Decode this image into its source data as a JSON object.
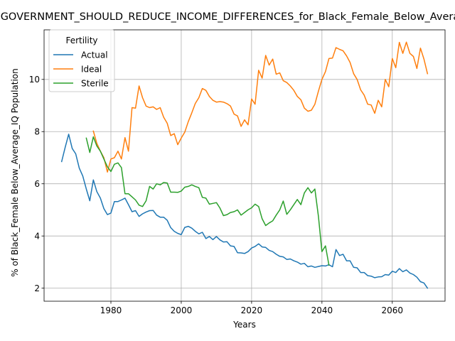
{
  "chart_data": {
    "type": "line",
    "title": "GOVERNMENT_SHOULD_REDUCE_INCOME_DIFFERENCES_for_Black_Female_Below_Average_IQ",
    "xlabel": "Years",
    "ylabel": "% of Black_Female Below_Average_IQ Population",
    "xlim": [
      1961,
      2075
    ],
    "ylim": [
      1.5,
      11.9
    ],
    "xticks": [
      1980,
      2000,
      2020,
      2040,
      2060
    ],
    "yticks": [
      2,
      4,
      6,
      8,
      10
    ],
    "grid": true,
    "legend": {
      "title": "Fertility",
      "placement": "top-left"
    },
    "series": [
      {
        "name": "Actual",
        "color": "#1f77b4",
        "x": [
          1966,
          1967,
          1968,
          1969,
          1970,
          1971,
          1972,
          1973,
          1974,
          1975,
          1976,
          1977,
          1978,
          1979,
          1980,
          1981,
          1982,
          1983,
          1984,
          1985,
          1986,
          1987,
          1988,
          1989,
          1990,
          1991,
          1992,
          1993,
          1994,
          1995,
          1996,
          1997,
          1998,
          1999,
          2000,
          2001,
          2002,
          2003,
          2004,
          2005,
          2006,
          2007,
          2008,
          2009,
          2010,
          2011,
          2012,
          2013,
          2014,
          2015,
          2016,
          2017,
          2018,
          2019,
          2020,
          2021,
          2022,
          2023,
          2024,
          2025,
          2026,
          2027,
          2028,
          2029,
          2030,
          2031,
          2032,
          2033,
          2034,
          2035,
          2036,
          2037,
          2038,
          2039,
          2040,
          2041,
          2042,
          2043,
          2044,
          2045,
          2046,
          2047,
          2048,
          2049,
          2050,
          2051,
          2052,
          2053,
          2054,
          2055,
          2056,
          2057,
          2058,
          2059,
          2060,
          2061,
          2062,
          2063,
          2064,
          2065,
          2066,
          2067,
          2068,
          2069,
          2070
        ],
        "y": [
          6.85,
          7.4,
          7.9,
          7.35,
          7.15,
          6.6,
          6.3,
          5.8,
          5.35,
          6.15,
          5.7,
          5.45,
          5.05,
          4.82,
          4.88,
          5.32,
          5.32,
          5.38,
          5.45,
          5.2,
          4.93,
          4.97,
          4.75,
          4.85,
          4.92,
          4.97,
          4.98,
          4.8,
          4.72,
          4.72,
          4.6,
          4.32,
          4.18,
          4.1,
          4.05,
          4.33,
          4.37,
          4.3,
          4.18,
          4.08,
          4.14,
          3.9,
          3.98,
          3.86,
          3.98,
          3.85,
          3.77,
          3.78,
          3.62,
          3.6,
          3.36,
          3.35,
          3.33,
          3.4,
          3.54,
          3.6,
          3.7,
          3.58,
          3.56,
          3.45,
          3.4,
          3.3,
          3.22,
          3.2,
          3.1,
          3.12,
          3.05,
          3.0,
          2.92,
          2.95,
          2.82,
          2.85,
          2.8,
          2.83,
          2.86,
          2.85,
          2.9,
          2.82,
          3.48,
          3.25,
          3.3,
          3.05,
          3.05,
          2.8,
          2.78,
          2.6,
          2.6,
          2.48,
          2.46,
          2.4,
          2.43,
          2.44,
          2.52,
          2.5,
          2.65,
          2.6,
          2.75,
          2.63,
          2.7,
          2.58,
          2.52,
          2.42,
          2.25,
          2.2,
          2.0
        ]
      },
      {
        "name": "Ideal",
        "color": "#ff7f0e",
        "x": [
          1975,
          1976,
          1977,
          1978,
          1979,
          1980,
          1981,
          1982,
          1983,
          1984,
          1985,
          1986,
          1987,
          1988,
          1989,
          1990,
          1991,
          1992,
          1993,
          1994,
          1995,
          1996,
          1997,
          1998,
          1999,
          2000,
          2001,
          2002,
          2003,
          2004,
          2005,
          2006,
          2007,
          2008,
          2009,
          2010,
          2011,
          2012,
          2013,
          2014,
          2015,
          2016,
          2017,
          2018,
          2019,
          2020,
          2021,
          2022,
          2023,
          2024,
          2025,
          2026,
          2027,
          2028,
          2029,
          2030,
          2031,
          2032,
          2033,
          2034,
          2035,
          2036,
          2037,
          2038,
          2039,
          2040,
          2041,
          2042,
          2043,
          2044,
          2045,
          2046,
          2047,
          2048,
          2049,
          2050,
          2051,
          2052,
          2053,
          2054,
          2055,
          2056,
          2057,
          2058,
          2059,
          2060,
          2061,
          2062,
          2063,
          2064,
          2065,
          2066,
          2067,
          2068,
          2069,
          2070
        ],
        "y": [
          8.02,
          7.55,
          7.25,
          7.0,
          6.45,
          6.95,
          7.0,
          7.25,
          6.95,
          7.77,
          7.25,
          8.92,
          8.9,
          9.75,
          9.3,
          8.98,
          8.92,
          8.95,
          8.85,
          8.92,
          8.55,
          8.32,
          7.85,
          7.92,
          7.5,
          7.75,
          7.98,
          8.38,
          8.72,
          9.08,
          9.3,
          9.65,
          9.58,
          9.35,
          9.2,
          9.13,
          9.15,
          9.13,
          9.07,
          8.98,
          8.67,
          8.6,
          8.2,
          8.45,
          8.26,
          9.25,
          9.05,
          10.35,
          10.05,
          10.92,
          10.55,
          10.78,
          10.2,
          10.25,
          9.95,
          9.88,
          9.75,
          9.58,
          9.35,
          9.22,
          8.9,
          8.78,
          8.82,
          9.05,
          9.55,
          10.0,
          10.3,
          10.8,
          10.82,
          11.22,
          11.15,
          11.1,
          10.9,
          10.65,
          10.22,
          10.0,
          9.6,
          9.4,
          9.05,
          9.02,
          8.7,
          9.2,
          8.95,
          10.0,
          9.72,
          10.8,
          10.45,
          11.42,
          11.0,
          11.43,
          11.0,
          10.88,
          10.42,
          11.2,
          10.78,
          10.22
        ]
      },
      {
        "name": "Sterile",
        "color": "#2ca02c",
        "x": [
          1973,
          1974,
          1975,
          1976,
          1977,
          1978,
          1979,
          1980,
          1981,
          1982,
          1983,
          1984,
          1985,
          1986,
          1987,
          1988,
          1989,
          1990,
          1991,
          1992,
          1993,
          1994,
          1995,
          1996,
          1997,
          1998,
          1999,
          2000,
          2001,
          2002,
          2003,
          2004,
          2005,
          2006,
          2007,
          2008,
          2009,
          2010,
          2011,
          2012,
          2013,
          2014,
          2015,
          2016,
          2017,
          2018,
          2019,
          2020,
          2021,
          2022,
          2023,
          2024,
          2025,
          2026,
          2027,
          2028,
          2029,
          2030,
          2031,
          2032,
          2033,
          2034,
          2035,
          2036,
          2037,
          2038,
          2039,
          2040,
          2041,
          2042
        ],
        "y": [
          7.75,
          7.2,
          7.8,
          7.45,
          7.25,
          6.95,
          6.65,
          6.47,
          6.75,
          6.8,
          6.62,
          5.62,
          5.62,
          5.5,
          5.38,
          5.18,
          5.13,
          5.35,
          5.9,
          5.8,
          6.0,
          5.96,
          6.05,
          6.03,
          5.68,
          5.68,
          5.67,
          5.72,
          5.87,
          5.9,
          5.96,
          5.9,
          5.85,
          5.48,
          5.45,
          5.22,
          5.25,
          5.28,
          5.07,
          4.78,
          4.82,
          4.9,
          4.93,
          5.0,
          4.8,
          4.9,
          5.0,
          5.08,
          5.22,
          5.13,
          4.66,
          4.4,
          4.5,
          4.58,
          4.8,
          5.0,
          5.34,
          4.83,
          5.0,
          5.2,
          5.4,
          5.2,
          5.65,
          5.85,
          5.65,
          5.8,
          4.75,
          3.4,
          3.62,
          2.88
        ]
      }
    ]
  }
}
